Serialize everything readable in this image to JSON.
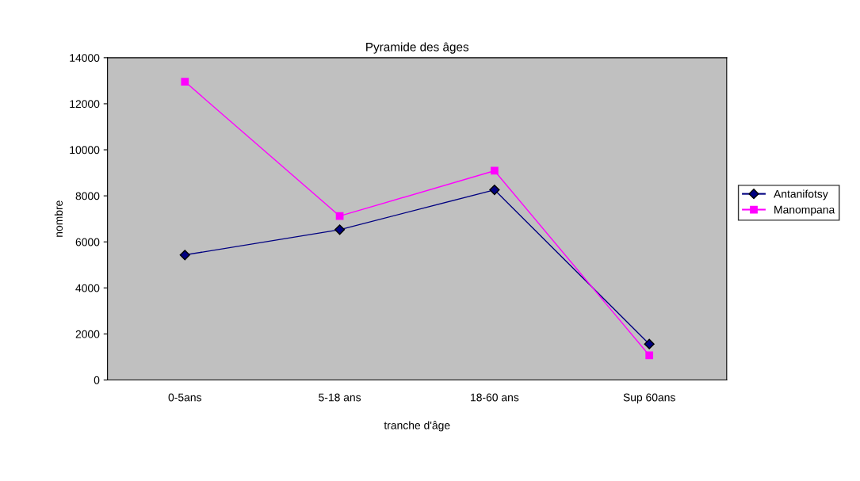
{
  "chart_data": {
    "type": "line",
    "title": "Pyramide des âges",
    "xlabel": "tranche d'âge",
    "ylabel": "nombre",
    "categories": [
      "0-5ans",
      "5-18 ans",
      "18-60 ans",
      "Sup 60ans"
    ],
    "series": [
      {
        "name": "Antanifotsy",
        "color": "#000080",
        "marker": "diamond",
        "values": [
          5430,
          6530,
          8260,
          1560
        ]
      },
      {
        "name": "Manompana",
        "color": "#ff00ff",
        "marker": "square",
        "values": [
          12960,
          7120,
          9090,
          1070
        ]
      }
    ],
    "ylim": [
      0,
      14000
    ],
    "yticks": [
      0,
      2000,
      4000,
      6000,
      8000,
      10000,
      12000,
      14000
    ],
    "grid": false,
    "legend": "right"
  }
}
